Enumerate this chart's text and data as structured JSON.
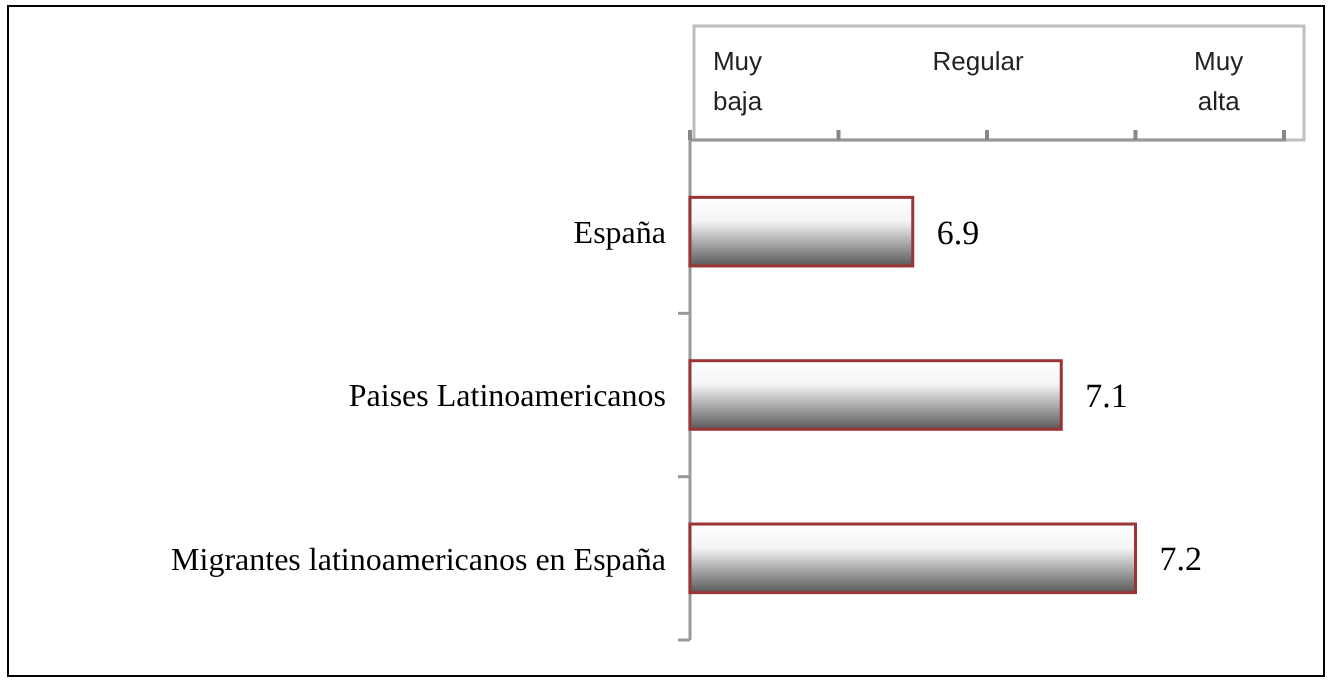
{
  "chart_data": {
    "type": "bar",
    "orientation": "horizontal",
    "categories": [
      "España",
      "Paises Latinoamericanos",
      "Migrantes latinoamericanos en España"
    ],
    "values": [
      6.9,
      7.1,
      7.2
    ],
    "color": "#9b3535",
    "data_labels": true,
    "xlim": [
      6.6,
      7.4
    ],
    "xticks": [
      {
        "value": 6.6,
        "label": null
      },
      {
        "value": 6.8,
        "label": null
      },
      {
        "value": 7.0,
        "label": null
      },
      {
        "value": 7.2,
        "label": null
      },
      {
        "value": 7.4,
        "label": null
      }
    ],
    "annotations": [
      "Muy baja",
      "Regular",
      "Muy alta"
    ]
  }
}
